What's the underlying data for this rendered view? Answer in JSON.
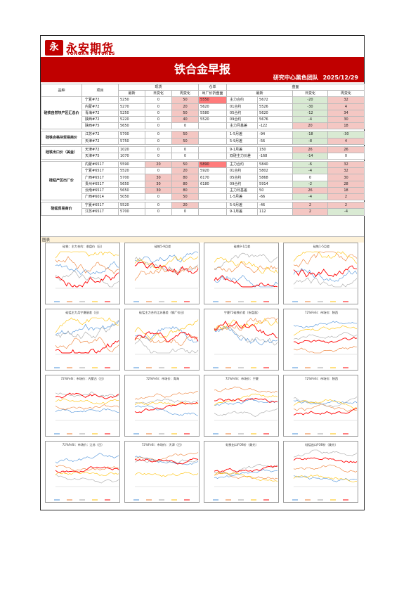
{
  "logo": {
    "mark": "永",
    "name_cn": "永安期货",
    "name_en": "YONGAN FUTURES"
  },
  "title": "铁合金早报",
  "team": "研究中心黑色团队",
  "date": "2025/12/29",
  "table": {
    "head1": {
      "item": "品种",
      "project": "项目",
      "spot": "现货",
      "warehouse": "仓单",
      "futures": "盘面"
    },
    "head2": {
      "latest": "最新",
      "day_change": "日变化",
      "week_change": "周变化",
      "factory_price_disk": "出厂价折盘面",
      "fut_latest": "最新",
      "fut_day": "日变化",
      "fut_week": "周变化"
    },
    "groups": [
      {
        "label": "硅铁自然块产区汇总价",
        "rows": [
          {
            "name": "宁夏#72",
            "latest": "5250",
            "dc": "0",
            "wc": "50",
            "disk": "5550",
            "fname": "主力合约",
            "flatest": "5672",
            "fdc": "-20",
            "fwc": "32",
            "wc_s": "pink",
            "disk_s": "red",
            "fdc_s": "green",
            "fwc_s": "pink"
          },
          {
            "name": "内蒙#72",
            "latest": "5270",
            "dc": "0",
            "wc": "20",
            "disk": "5620",
            "fname": "01合约",
            "flatest": "5526",
            "fdc": "-30",
            "fwc": "4",
            "wc_s": "pink",
            "fdc_s": "green",
            "fwc_s": "pink"
          },
          {
            "name": "青海#72",
            "latest": "5250",
            "dc": "0",
            "wc": "50",
            "disk": "5580",
            "fname": "05合约",
            "flatest": "5620",
            "fdc": "-12",
            "fwc": "34",
            "wc_s": "pink",
            "fdc_s": "green",
            "fwc_s": "pink"
          },
          {
            "name": "陕西#72",
            "latest": "5220",
            "dc": "0",
            "wc": "40",
            "disk": "5520",
            "fname": "09合约",
            "flatest": "5676",
            "fdc": "-4",
            "fwc": "30",
            "wc_s": "pink",
            "fdc_s": "green",
            "fwc_s": "pink"
          },
          {
            "name": "陕西#75",
            "latest": "5650",
            "dc": "0",
            "wc": "0",
            "disk": "",
            "fname": "主力月基差",
            "flatest": "-122",
            "fdc": "20",
            "fwc": "18",
            "fdc_s": "pink",
            "fwc_s": "pink"
          }
        ]
      },
      {
        "label": "硅铁合格块贸易商价",
        "rows": [
          {
            "name": "江苏#72",
            "latest": "5700",
            "dc": "0",
            "wc": "50",
            "disk": "",
            "fname": "1-5月差",
            "flatest": "-94",
            "fdc": "-18",
            "fwc": "-30",
            "wc_s": "pink",
            "fdc_s": "green",
            "fwc_s": "green"
          },
          {
            "name": "天津#72",
            "latest": "5750",
            "dc": "0",
            "wc": "50",
            "disk": "",
            "fname": "5-9月差",
            "flatest": "-56",
            "fdc": "-8",
            "fwc": "4",
            "wc_s": "pink",
            "fdc_s": "green",
            "fwc_s": "pink"
          }
        ]
      },
      {
        "label": "硅铁出口价（美金）",
        "rows": [
          {
            "name": "天津#72",
            "latest": "1020",
            "dc": "0",
            "wc": "0",
            "disk": "",
            "fname": "9-1月差",
            "flatest": "150",
            "fdc": "26",
            "fwc": "26",
            "fdc_s": "pink",
            "fwc_s": "pink"
          },
          {
            "name": "天津#75",
            "latest": "1070",
            "dc": "0",
            "wc": "0",
            "disk": "",
            "fname": "双硅主力价差",
            "flatest": "-168",
            "fdc": "-14",
            "fwc": "0",
            "fdc_s": "green"
          }
        ]
      },
      {
        "label": "硅锰产区出厂价",
        "rows": [
          {
            "name": "内蒙#6517",
            "latest": "5590",
            "dc": "20",
            "wc": "50",
            "disk": "5890",
            "fname": "主力合约",
            "flatest": "5840",
            "fdc": "-6",
            "fwc": "32",
            "dc_s": "pink",
            "wc_s": "pink",
            "disk_s": "red",
            "fdc_s": "green",
            "fwc_s": "pink"
          },
          {
            "name": "宁夏#6517",
            "latest": "5520",
            "dc": "0",
            "wc": "20",
            "disk": "5920",
            "fname": "01合约",
            "flatest": "5802",
            "fdc": "-4",
            "fwc": "32",
            "wc_s": "pink",
            "fdc_s": "green",
            "fwc_s": "pink"
          },
          {
            "name": "广西#6517",
            "latest": "5700",
            "dc": "30",
            "wc": "80",
            "disk": "6170",
            "fname": "05合约",
            "flatest": "5868",
            "fdc": "0",
            "fwc": "30",
            "dc_s": "pink",
            "wc_s": "pink",
            "fwc_s": "pink"
          },
          {
            "name": "贵州#6517",
            "latest": "5650",
            "dc": "30",
            "wc": "80",
            "disk": "6180",
            "fname": "09合约",
            "flatest": "5914",
            "fdc": "-2",
            "fwc": "28",
            "dc_s": "pink",
            "wc_s": "pink",
            "fdc_s": "green",
            "fwc_s": "pink"
          },
          {
            "name": "云南#6517",
            "latest": "5650",
            "dc": "30",
            "wc": "80",
            "disk": "",
            "fname": "主力月基差",
            "flatest": "50",
            "fdc": "26",
            "fwc": "18",
            "dc_s": "pink",
            "wc_s": "pink",
            "fdc_s": "pink",
            "fwc_s": "pink"
          },
          {
            "name": "广西#6014",
            "latest": "5050",
            "dc": "0",
            "wc": "50",
            "disk": "",
            "fname": "1-5月差",
            "flatest": "-66",
            "fdc": "-4",
            "fwc": "2",
            "wc_s": "pink",
            "fdc_s": "green",
            "fwc_s": "pink"
          }
        ]
      },
      {
        "label": "硅锰贸易商价",
        "rows": [
          {
            "name": "宁夏#6517",
            "latest": "5520",
            "dc": "0",
            "wc": "20",
            "disk": "",
            "fname": "5-9月差",
            "flatest": "-46",
            "fdc": "2",
            "fwc": "2",
            "wc_s": "pink",
            "fdc_s": "pink",
            "fwc_s": "pink"
          },
          {
            "name": "江苏#6517",
            "latest": "5700",
            "dc": "0",
            "wc": "0",
            "disk": "",
            "fname": "9-1月差",
            "flatest": "112",
            "fdc": "2",
            "fwc": "-4",
            "fdc_s": "pink",
            "fwc_s": "green"
          }
        ]
      }
    ]
  },
  "graph_label": "图表",
  "chart_titles": [
    "硅铁：主力合约：收盘价（日）",
    "硅铁5-9月差",
    "硅铁9-1月差",
    "硅铁1-5月差",
    "硅锰主力月宁夏基差（日）",
    "硅锰主力合约江苏基差（钢厂价日）",
    "宁夏72硅铁价差（折盘面）",
    "72%FeSi：市场价：陕西",
    "72%FeSi：市场价：内蒙古（日）",
    "72%FeSi：市场价：青海",
    "72%FeSi：市场价：宁夏",
    "72%FeSi：市场价：陕西",
    "72%FeSi：市场价：江苏（日）",
    "72%FeSi：市场价：天津（日）",
    "硅铁出口FOB价（美元）",
    "硅锰出口FOB价（美元）"
  ],
  "series_colors": [
    "#4a90d9",
    "#ed7d31",
    "#a5a5a5",
    "#ffc000",
    "#ff0000"
  ]
}
